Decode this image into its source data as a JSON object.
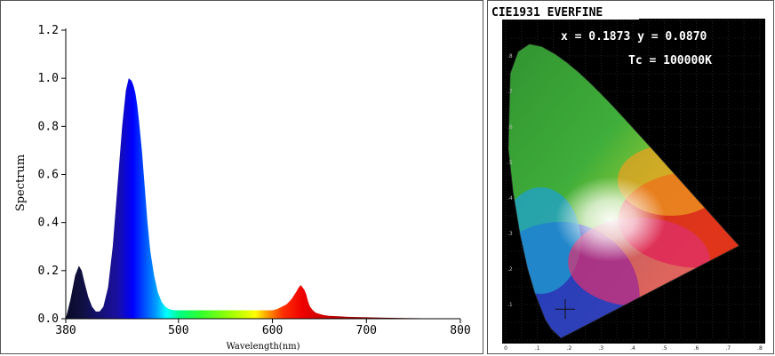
{
  "chart_data": [
    {
      "type": "area",
      "xlabel": "Wavelength(nm)",
      "ylabel": "Spectrum",
      "xlim": [
        380,
        800
      ],
      "ylim": [
        0,
        1.2
      ],
      "x_ticks": [
        "380",
        "500",
        "600",
        "700",
        "800"
      ],
      "y_ticks": [
        "0.0",
        "0.2",
        "0.4",
        "0.6",
        "0.8",
        "1.0",
        "1.2"
      ],
      "fill": "wavelength-rainbow gradient",
      "x": [
        380,
        385,
        390,
        394,
        397,
        400,
        404,
        408,
        412,
        416,
        420,
        425,
        430,
        435,
        440,
        444,
        447,
        450,
        452,
        454,
        456,
        458,
        461,
        464,
        467,
        470,
        474,
        478,
        482,
        486,
        490,
        495,
        500,
        510,
        520,
        530,
        540,
        550,
        560,
        570,
        580,
        590,
        600,
        605,
        610,
        615,
        620,
        625,
        628,
        630,
        632,
        634,
        636,
        638,
        640,
        643,
        646,
        650,
        655,
        660,
        670,
        680,
        700,
        720,
        740,
        760,
        780,
        800
      ],
      "y": [
        0.0,
        0.08,
        0.18,
        0.22,
        0.2,
        0.15,
        0.09,
        0.05,
        0.03,
        0.03,
        0.05,
        0.13,
        0.3,
        0.55,
        0.8,
        0.95,
        1.0,
        0.99,
        0.97,
        0.94,
        0.89,
        0.82,
        0.7,
        0.55,
        0.4,
        0.28,
        0.18,
        0.11,
        0.07,
        0.05,
        0.04,
        0.035,
        0.035,
        0.035,
        0.035,
        0.035,
        0.035,
        0.035,
        0.035,
        0.035,
        0.035,
        0.035,
        0.035,
        0.04,
        0.05,
        0.06,
        0.08,
        0.11,
        0.13,
        0.14,
        0.13,
        0.12,
        0.1,
        0.07,
        0.05,
        0.035,
        0.025,
        0.02,
        0.015,
        0.012,
        0.01,
        0.008,
        0.006,
        0.004,
        0.003,
        0.002,
        0.001,
        0.0
      ]
    },
    {
      "type": "scatter",
      "title": "CIE1931 EVERFINE",
      "annotations": [
        "x = 0.1873 y = 0.0870",
        "Tc = 100000K"
      ],
      "xlim": [
        0,
        0.8
      ],
      "ylim": [
        0,
        0.9
      ],
      "x_ticks": [
        "0",
        ".1",
        ".2",
        ".3",
        ".4",
        ".5",
        ".6",
        ".7",
        ".8"
      ],
      "y_ticks": [
        ".1",
        ".2",
        ".3",
        ".4",
        ".5",
        ".6",
        ".7",
        ".8"
      ],
      "point": {
        "x": 0.1873,
        "y": 0.087
      },
      "locus": [
        [
          0.1741,
          0.005
        ],
        [
          0.144,
          0.0297
        ],
        [
          0.1241,
          0.0578
        ],
        [
          0.0913,
          0.1327
        ],
        [
          0.0687,
          0.2007
        ],
        [
          0.0454,
          0.295
        ],
        [
          0.0235,
          0.4127
        ],
        [
          0.0082,
          0.5384
        ],
        [
          0.0139,
          0.7502
        ],
        [
          0.0389,
          0.812
        ],
        [
          0.0743,
          0.8338
        ],
        [
          0.1142,
          0.8262
        ],
        [
          0.1547,
          0.8059
        ],
        [
          0.1929,
          0.7816
        ],
        [
          0.2296,
          0.7543
        ],
        [
          0.2658,
          0.7243
        ],
        [
          0.3016,
          0.6923
        ],
        [
          0.3373,
          0.6589
        ],
        [
          0.3731,
          0.6245
        ],
        [
          0.4087,
          0.5896
        ],
        [
          0.4441,
          0.5547
        ],
        [
          0.4788,
          0.5202
        ],
        [
          0.5125,
          0.4866
        ],
        [
          0.5448,
          0.4544
        ],
        [
          0.5752,
          0.4242
        ],
        [
          0.6029,
          0.3965
        ],
        [
          0.627,
          0.3725
        ],
        [
          0.6482,
          0.3514
        ],
        [
          0.6658,
          0.334
        ],
        [
          0.6915,
          0.3083
        ],
        [
          0.7347,
          0.2653
        ]
      ]
    }
  ]
}
